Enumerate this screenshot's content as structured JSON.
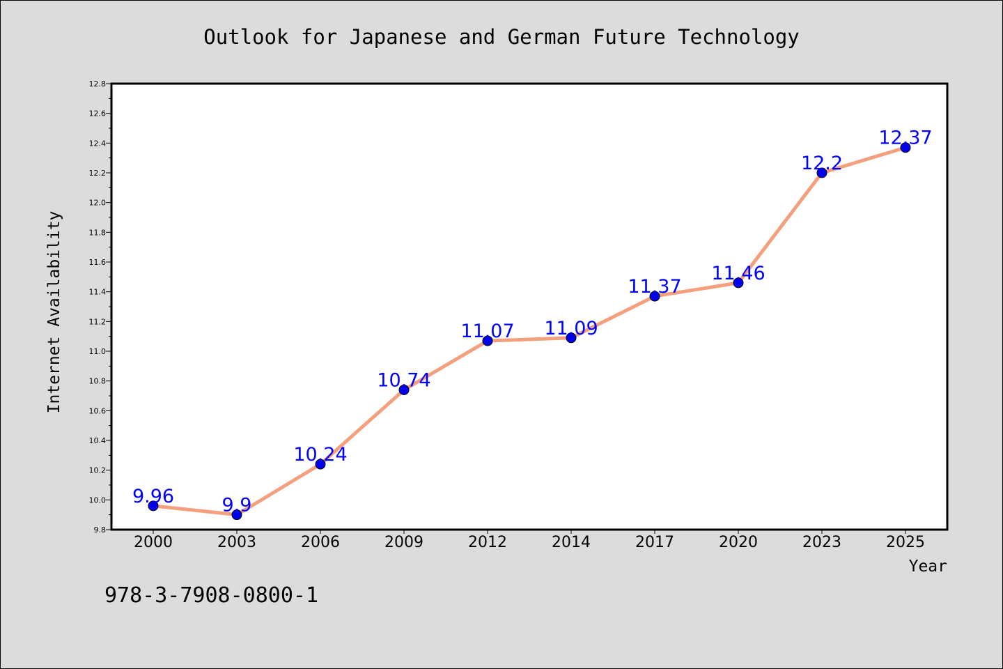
{
  "chart_data": {
    "type": "line",
    "title": "Outlook for Japanese and German Future Technology",
    "xlabel": "Year",
    "ylabel": "Internet Availability",
    "categories": [
      "2000",
      "2003",
      "2006",
      "2009",
      "2012",
      "2014",
      "2017",
      "2020",
      "2023",
      "2025"
    ],
    "series": [
      {
        "values": [
          9.96,
          9.9,
          10.24,
          10.74,
          11.07,
          11.09,
          11.37,
          11.46,
          12.2,
          12.37
        ],
        "labels": [
          "9.96",
          "9.9",
          "10.24",
          "10.74",
          "11.07",
          "11.09",
          "11.37",
          "11.46",
          "12.2",
          "12.37"
        ],
        "line_color": "#f4a07e",
        "marker_color": "#0000ee",
        "label_color": "#0000ff"
      }
    ],
    "ylim": [
      9.8,
      12.8
    ],
    "yticks": [
      "9.8",
      "10.0",
      "10.2",
      "10.4",
      "10.6",
      "10.8",
      "11.0",
      "11.2",
      "11.4",
      "11.6",
      "11.8",
      "12.0",
      "12.2",
      "12.4",
      "12.6",
      "12.8"
    ],
    "grid": false,
    "legend": "none",
    "background": "#dcdcdc",
    "plot_background": "#ffffff"
  },
  "footer_code": "978-3-7908-0800-1"
}
